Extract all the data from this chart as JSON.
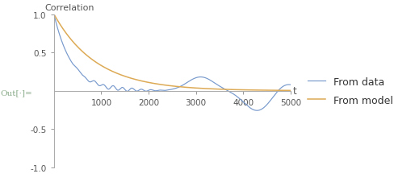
{
  "title": "",
  "xlabel": "t",
  "ylabel": "Correlation",
  "xlim": [
    0,
    5000
  ],
  "ylim": [
    -1.0,
    1.0
  ],
  "xticks": [
    1000,
    2000,
    3000,
    4000,
    5000
  ],
  "yticks": [
    -1.0,
    -0.5,
    0.5,
    1.0
  ],
  "yticklabels": [
    "-1.0",
    "-0.5",
    "0.5",
    "1.0"
  ],
  "xticklabels": [
    "1000",
    "2000",
    "3000",
    "4000",
    "5000"
  ],
  "legend_entries": [
    "From data",
    "From model"
  ],
  "line_color_data": "#7799cc",
  "line_color_model": "#ddaa55",
  "background_color": "#ffffff",
  "out_label": "Out[·]=",
  "tau_model": 900,
  "tau_data": 380,
  "figsize": [
    5.14,
    2.32
  ],
  "dpi": 100
}
